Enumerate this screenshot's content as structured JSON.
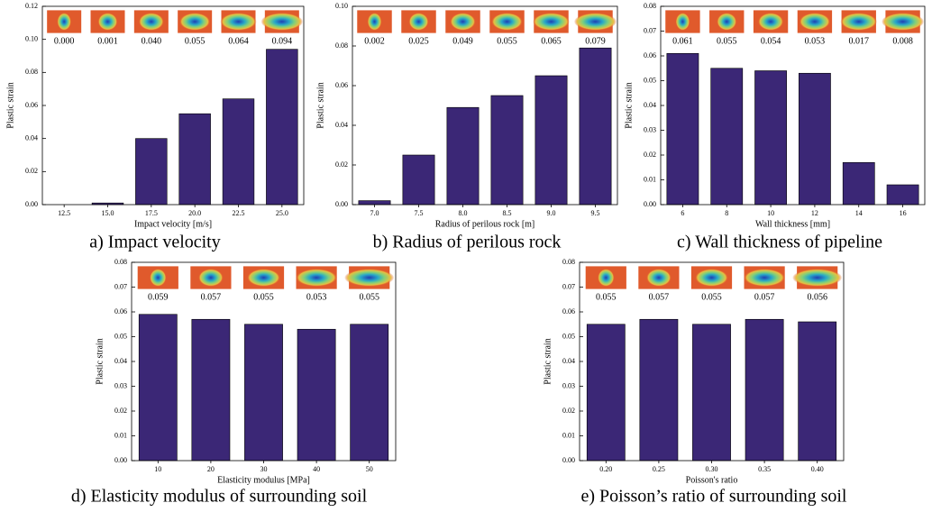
{
  "chart_data": [
    {
      "type": "bar",
      "caption": "a) Impact velocity",
      "xlabel": "Impact velocity [m/s]",
      "ylabel": "Plastic strain",
      "categories": [
        "12.5",
        "15.0",
        "17.5",
        "20.0",
        "22.5",
        "25.0"
      ],
      "values": [
        0.0,
        0.001,
        0.04,
        0.055,
        0.064,
        0.094
      ],
      "value_labels": [
        "0.000",
        "0.001",
        "0.040",
        "0.055",
        "0.064",
        "0.094"
      ],
      "color": "#3b2776",
      "ylim": [
        0,
        0.12
      ],
      "yticks": [
        {
          "value": 0,
          "label": "0.00"
        },
        0.02,
        0.04,
        0.06,
        0.08,
        {
          "value": 0.1,
          "label": "0.10"
        },
        0.12
      ]
    },
    {
      "type": "bar",
      "caption": "b) Radius of perilous rock",
      "xlabel": "Radius of perilous rock [m]",
      "ylabel": "Plastic strain",
      "categories": [
        "7.0",
        "7.5",
        "8.0",
        "8.5",
        "9.0",
        "9.5"
      ],
      "values": [
        0.002,
        0.025,
        0.049,
        0.055,
        0.065,
        0.079
      ],
      "value_labels": [
        "0.002",
        "0.025",
        "0.049",
        "0.055",
        "0.065",
        "0.079"
      ],
      "color": "#3b2776",
      "ylim": [
        0,
        0.1
      ],
      "yticks": [
        {
          "value": 0,
          "label": "0.00"
        },
        0.02,
        0.04,
        0.06,
        0.08,
        {
          "value": 0.1,
          "label": "0.10"
        }
      ]
    },
    {
      "type": "bar",
      "caption": "c) Wall thickness of pipeline",
      "xlabel": "Wall thickness [mm]",
      "ylabel": "Plastic strain",
      "categories": [
        "6",
        "8",
        "10",
        "12",
        "14",
        "16"
      ],
      "values": [
        0.061,
        0.055,
        0.054,
        0.053,
        0.017,
        0.008
      ],
      "value_labels": [
        "0.061",
        "0.055",
        "0.054",
        "0.053",
        "0.017",
        "0.008"
      ],
      "color": "#3b2776",
      "ylim": [
        0,
        0.08
      ],
      "yticks": [
        {
          "value": 0,
          "label": "0.00"
        },
        0.01,
        0.02,
        0.03,
        0.04,
        0.05,
        0.06,
        0.07,
        0.08
      ]
    },
    {
      "type": "bar",
      "caption": "d) Elasticity modulus of surrounding soil",
      "xlabel": "Elasticity modulus [MPa]",
      "ylabel": "Plastic strain",
      "categories": [
        "10",
        "20",
        "30",
        "40",
        "50"
      ],
      "values": [
        0.059,
        0.057,
        0.055,
        0.053,
        0.055
      ],
      "value_labels": [
        "0.059",
        "0.057",
        "0.055",
        "0.053",
        "0.055"
      ],
      "color": "#3b2776",
      "ylim": [
        0,
        0.08
      ],
      "yticks": [
        {
          "value": 0,
          "label": "0.00"
        },
        0.01,
        0.02,
        0.03,
        0.04,
        0.05,
        0.06,
        0.07,
        0.08
      ]
    },
    {
      "type": "bar",
      "caption": "e) Poisson’s ratio of surrounding soil",
      "xlabel": "Poisson's ratio",
      "ylabel": "Plastic strain",
      "categories": [
        "0.20",
        "0.25",
        "0.30",
        "0.35",
        "0.40"
      ],
      "values": [
        0.055,
        0.057,
        0.055,
        0.057,
        0.056
      ],
      "value_labels": [
        "0.055",
        "0.057",
        "0.055",
        "0.057",
        "0.056"
      ],
      "color": "#3b2776",
      "ylim": [
        0,
        0.08
      ],
      "yticks": [
        {
          "value": 0,
          "label": "0.00"
        },
        0.01,
        0.02,
        0.03,
        0.04,
        0.05,
        0.06,
        0.07,
        0.08
      ]
    }
  ]
}
